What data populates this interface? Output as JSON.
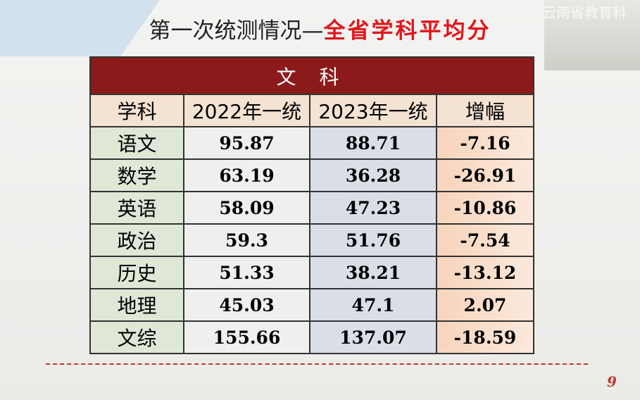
{
  "slide": {
    "title": {
      "main": "第一次统测情况—",
      "highlight": "全省学科平均分"
    },
    "watermark": "云南省教育科",
    "page_number": "9",
    "table": {
      "caption": "文 科",
      "header": [
        "学科",
        "2022年一统",
        "2023年一统",
        "增幅"
      ],
      "rows": [
        [
          "语文",
          95.87,
          88.71,
          -7.16
        ],
        [
          "数学",
          63.19,
          36.28,
          -26.91
        ],
        [
          "英语",
          58.09,
          47.23,
          -10.86
        ],
        [
          "政治",
          59.3,
          51.76,
          -7.54
        ],
        [
          "历史",
          51.33,
          38.21,
          -13.12
        ],
        [
          "地理",
          45.03,
          47.1,
          2.07
        ],
        [
          "文综",
          155.66,
          137.07,
          -18.59
        ]
      ]
    }
  }
}
